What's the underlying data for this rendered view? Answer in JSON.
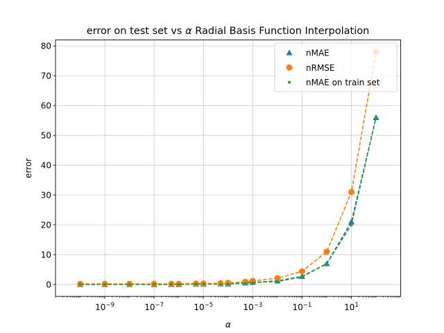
{
  "chart_data": {
    "type": "scatter",
    "title_prefix": "error on test set vs ",
    "title_symbol": "α",
    "title_suffix": " Radial Basis Function Interpolation",
    "xlabel": "α",
    "ylabel": "error",
    "xscale": "log",
    "xlim": [
      1e-11,
      1000.0
    ],
    "ylim": [
      -4,
      82
    ],
    "grid": true,
    "legend_position": "upper right",
    "yticks": [
      0,
      10,
      20,
      30,
      40,
      50,
      60,
      70,
      80
    ],
    "xticks": [
      {
        "value": 1e-09,
        "base": "10",
        "exp": "−9"
      },
      {
        "value": 1e-07,
        "base": "10",
        "exp": "−7"
      },
      {
        "value": 1e-05,
        "base": "10",
        "exp": "−5"
      },
      {
        "value": 0.001,
        "base": "10",
        "exp": "−3"
      },
      {
        "value": 0.1,
        "base": "10",
        "exp": "−1"
      },
      {
        "value": 10.0,
        "base": "10",
        "exp": "1"
      }
    ],
    "x": [
      1e-10,
      1e-09,
      1e-08,
      1e-07,
      5e-07,
      1e-06,
      5e-06,
      1e-05,
      5e-05,
      0.0001,
      0.0005,
      0.001,
      0.01,
      0.1,
      1,
      10,
      100
    ],
    "series": [
      {
        "name": "nMAE",
        "marker": "triangle",
        "color": "#1f77b4",
        "values": [
          0.0,
          0.0,
          0.0,
          0.0,
          0.0,
          0.0,
          0.1,
          0.1,
          0.2,
          0.2,
          0.5,
          0.7,
          1.2,
          2.7,
          7.0,
          21.0,
          56.0
        ]
      },
      {
        "name": "nRMSE",
        "marker": "circle",
        "color": "#ff7f0e",
        "values": [
          0.2,
          0.2,
          0.2,
          0.2,
          0.2,
          0.2,
          0.3,
          0.3,
          0.4,
          0.5,
          0.9,
          1.2,
          2.1,
          4.4,
          11.0,
          31.0,
          78.0
        ]
      },
      {
        "name": "nMAE on train set",
        "marker": "point",
        "color": "#2ca02c",
        "values": [
          0.0,
          0.0,
          0.0,
          0.0,
          0.0,
          0.0,
          0.1,
          0.1,
          0.1,
          0.1,
          0.4,
          0.6,
          1.0,
          2.5,
          7.0,
          20.0,
          56.0
        ]
      }
    ]
  }
}
